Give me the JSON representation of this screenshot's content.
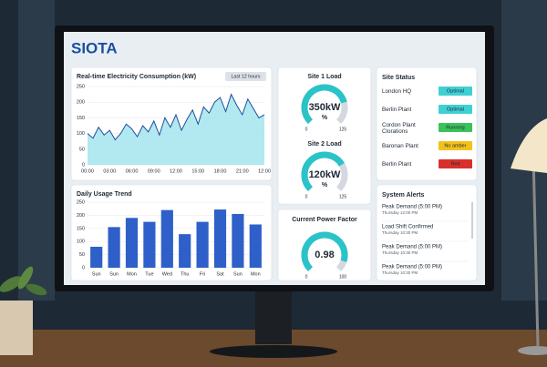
{
  "logo": "SIOTA",
  "chart_data": [
    {
      "type": "line",
      "title": "Real-time Electricity Consumption (kW)",
      "range_button": "Last 12 hours",
      "x": [
        0,
        0.75,
        1.5,
        2.25,
        3,
        3.75,
        4.5,
        5.25,
        6,
        6.75,
        7.5,
        8.25,
        9,
        9.75,
        10.5,
        11.25,
        12,
        12.75,
        13.5,
        14.25,
        15,
        15.75,
        16.5,
        17.25,
        18,
        18.75,
        19.5,
        20.25,
        21,
        21.75,
        22.5,
        23.25,
        24
      ],
      "values": [
        100,
        85,
        120,
        95,
        110,
        80,
        100,
        130,
        115,
        90,
        125,
        105,
        140,
        95,
        150,
        120,
        160,
        110,
        145,
        175,
        130,
        185,
        165,
        200,
        215,
        170,
        225,
        190,
        160,
        210,
        180,
        150,
        160
      ],
      "color": "#1f4e9c",
      "fill": "#9fe3ec",
      "xlim": [
        0,
        24
      ],
      "xticks": [
        {
          "value": 0,
          "label": "00:00"
        },
        {
          "value": 3,
          "label": "03:00"
        },
        {
          "value": 6,
          "label": "06:00"
        },
        {
          "value": 9,
          "label": "09:00"
        },
        {
          "value": 12,
          "label": "12:00"
        },
        {
          "value": 15,
          "label": "15:00"
        },
        {
          "value": 18,
          "label": "18:00"
        },
        {
          "value": 21,
          "label": "21:00"
        },
        {
          "value": 24,
          "label": "12:00"
        }
      ],
      "ylim": [
        0,
        250
      ],
      "yticks": [
        0,
        50,
        100,
        150,
        200,
        250
      ],
      "grid": true
    },
    {
      "type": "bar",
      "title": "Daily Usage Trend",
      "categories": [
        "Sun",
        "Sun",
        "Mon",
        "Tue",
        "Wed",
        "Thu",
        "Fri",
        "Sat",
        "Sun",
        "Mon"
      ],
      "values": [
        80,
        155,
        190,
        175,
        220,
        128,
        175,
        222,
        205,
        165
      ],
      "color": "#2f5fc8",
      "ylim": [
        0,
        250
      ],
      "yticks": [
        0,
        50,
        100,
        150,
        200,
        250
      ],
      "grid": true
    }
  ],
  "gauges": [
    {
      "title": "Site 1 Load",
      "value_label": "350kW",
      "unit": "%",
      "min_label": "0",
      "max_label": "125",
      "percent": 78
    },
    {
      "title": "Site 2 Load",
      "value_label": "120kW",
      "unit": "%",
      "min_label": "0",
      "max_label": "125",
      "percent": 72
    },
    {
      "title": "Current Power Factor",
      "value_label": "0.98",
      "unit": "",
      "min_label": "0",
      "max_label": "100",
      "percent": 90
    }
  ],
  "site_status": {
    "title": "Site Status",
    "rows": [
      {
        "site": "London HQ",
        "status": "Optimal",
        "color": "#3fd0d4"
      },
      {
        "site": "Berlin Plant",
        "status": "Optimal",
        "color": "#3fd0d4"
      },
      {
        "site": "Cordon Plant Clorations",
        "status": "Running",
        "color": "#3cc25a"
      },
      {
        "site": "Baronan Plant",
        "status": "No amber",
        "color": "#f2c21b"
      },
      {
        "site": "Berlin Plant",
        "status": "Red",
        "color": "#d9302c"
      }
    ]
  },
  "alerts": {
    "title": "System Alerts",
    "items": [
      {
        "title": "Peak Demand (5:00 PM)",
        "time": "Thursday 12:00 PM"
      },
      {
        "title": "Load Shift Confirmed",
        "time": "Thursday 10:30 PM"
      },
      {
        "title": "Peak Demand (5:00 PM)",
        "time": "Thursday 10:30 PM"
      },
      {
        "title": "Peak Demand (5:00 PM)",
        "time": "Thursday 10:30 PM"
      }
    ]
  }
}
